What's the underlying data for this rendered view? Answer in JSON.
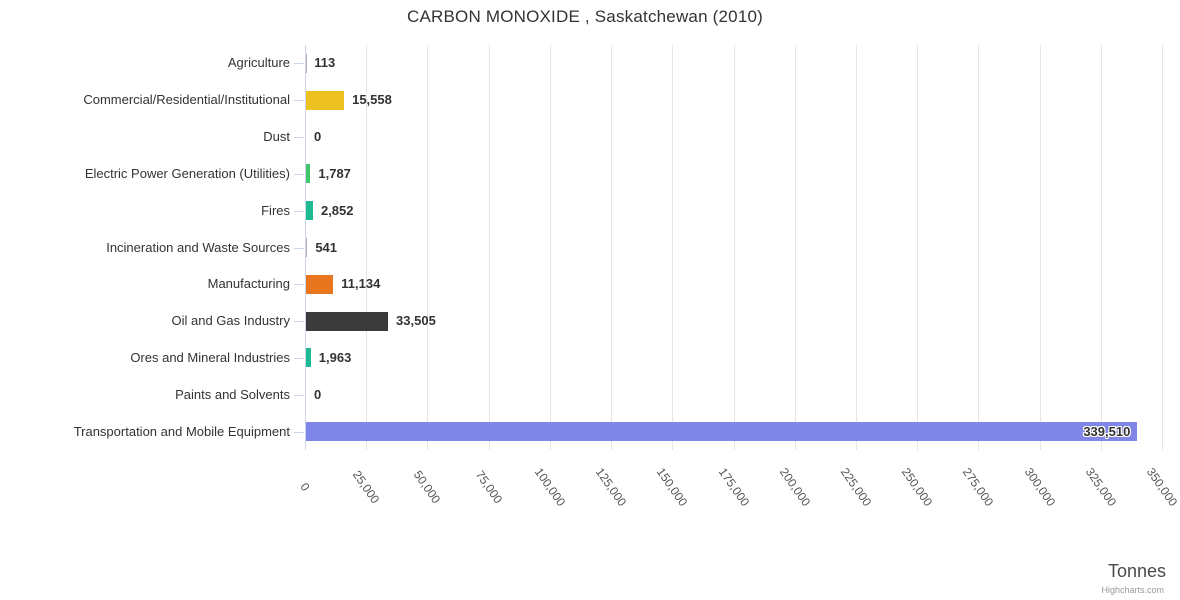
{
  "title": "CARBON MONOXIDE , Saskatchewan (2010)",
  "x_axis": {
    "title": "Tonnes",
    "tick_labels": [
      "0",
      "25,000",
      "50,000",
      "75,000",
      "100,000",
      "125,000",
      "150,000",
      "175,000",
      "200,000",
      "225,000",
      "250,000",
      "275,000",
      "300,000",
      "325,000",
      "350,000"
    ]
  },
  "credit": "Highcharts.com",
  "colors": {
    "axis_line": "#ccd6eb",
    "grid_line": "#e6e6e6",
    "title_text": "#333333",
    "label_text": "#333333",
    "tick_text": "#555555"
  },
  "chart_data": {
    "type": "bar",
    "orientation": "horizontal",
    "title": "CARBON MONOXIDE , Saskatchewan (2010)",
    "xlabel": "Tonnes",
    "xlim": [
      0,
      350000
    ],
    "tick_interval": 25000,
    "grid": true,
    "legend": "none",
    "categories": [
      "Agriculture",
      "Commercial/Residential/Institutional",
      "Dust",
      "Electric Power Generation (Utilities)",
      "Fires",
      "Incineration and Waste Sources",
      "Manufacturing",
      "Oil and Gas Industry",
      "Ores and Mineral Industries",
      "Paints and Solvents",
      "Transportation and Mobile Equipment"
    ],
    "values": [
      113,
      15558,
      0,
      1787,
      2852,
      541,
      11134,
      33505,
      1963,
      0,
      339510
    ],
    "value_labels": [
      "113",
      "15,558",
      "0",
      "1,787",
      "2,852",
      "541",
      "11,134",
      "33,505",
      "1,963",
      "0",
      "339,510"
    ],
    "bar_colors": [
      "#b3b3b3",
      "#edc11f",
      "#b3b3b3",
      "#3fc66a",
      "#1db993",
      "#b3b3b3",
      "#e8761f",
      "#3b3b3b",
      "#1db993",
      "#b3b3b3",
      "#8085e8"
    ]
  }
}
